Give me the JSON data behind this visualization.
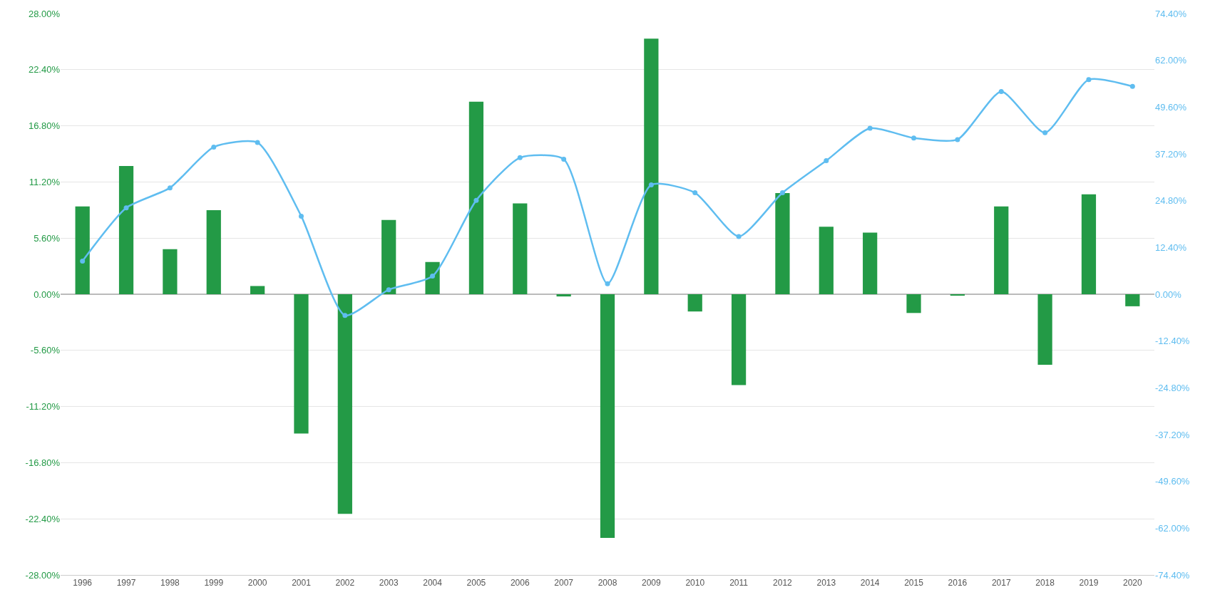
{
  "chart_data": {
    "type": "bar",
    "categories": [
      "1996",
      "1997",
      "1998",
      "1999",
      "2000",
      "2001",
      "2002",
      "2003",
      "2004",
      "2005",
      "2006",
      "2007",
      "2008",
      "2009",
      "2010",
      "2011",
      "2012",
      "2013",
      "2014",
      "2015",
      "2016",
      "2017",
      "2018",
      "2019",
      "2020"
    ],
    "series": [
      {
        "color": "#239a46",
        "values": [
          8.76,
          12.8,
          4.49,
          8.39,
          0.82,
          -13.9,
          -21.9,
          7.41,
          3.22,
          19.2,
          9.06,
          -0.22,
          -24.3,
          25.5,
          -1.72,
          -9.06,
          10.1,
          6.74,
          6.14,
          -1.87,
          -0.1,
          8.76,
          -7.04,
          9.96,
          -1.2
        ]
      },
      {
        "type": "line",
        "axis": "y2",
        "color": "#5fbdf0",
        "marker": "circle",
        "values": [
          8.8,
          22.9,
          28.2,
          39.0,
          40.2,
          20.7,
          -5.6,
          1.2,
          4.8,
          24.9,
          36.2,
          35.8,
          2.8,
          29.0,
          26.9,
          15.3,
          26.9,
          35.4,
          44.0,
          41.4,
          41.0,
          53.7,
          42.8,
          56.9,
          55.1
        ]
      }
    ],
    "ylim": [
      -28,
      28
    ],
    "yticks": [
      {
        "value": 28,
        "label": "28.00%"
      },
      {
        "value": 22.4,
        "label": "22.40%"
      },
      {
        "value": 16.8,
        "label": "16.80%"
      },
      {
        "value": 11.2,
        "label": "11.20%"
      },
      {
        "value": 5.6,
        "label": "5.60%"
      },
      {
        "value": 0,
        "label": "0.00%"
      },
      {
        "value": -5.6,
        "label": "-5.60%"
      },
      {
        "value": -11.2,
        "label": "-11.20%"
      },
      {
        "value": -16.8,
        "label": "-16.80%"
      },
      {
        "value": -22.4,
        "label": "-22.40%"
      },
      {
        "value": -28,
        "label": "-28.00%"
      }
    ],
    "y2lim": [
      -74.4,
      74.4
    ],
    "y2ticks": [
      {
        "value": 74.4,
        "label": "74.40%"
      },
      {
        "value": 62,
        "label": "62.00%"
      },
      {
        "value": 49.6,
        "label": "49.60%"
      },
      {
        "value": 37.2,
        "label": "37.20%"
      },
      {
        "value": 24.8,
        "label": "24.80%"
      },
      {
        "value": 12.4,
        "label": "12.40%"
      },
      {
        "value": 0,
        "label": "0.00%"
      },
      {
        "value": -12.4,
        "label": "-12.40%"
      },
      {
        "value": -24.8,
        "label": "-24.80%"
      },
      {
        "value": -37.2,
        "label": "-37.20%"
      },
      {
        "value": -49.6,
        "label": "-49.60%"
      },
      {
        "value": -62,
        "label": "-62.00%"
      },
      {
        "value": -74.4,
        "label": "-74.40%"
      }
    ],
    "grid": "y",
    "legend": false
  }
}
